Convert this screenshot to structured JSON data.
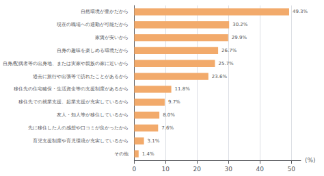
{
  "chart_data": {
    "type": "bar",
    "orientation": "horizontal",
    "categories": [
      "その他",
      "育児支援制度や育児環境が充実しているから",
      "先に移住した人の感想や口コミが良かったから",
      "友人・知人等が移住しているから",
      "移住先での就業支援、起業支援が充実しているから",
      "移住先の住宅確保・生活資金等の支援制度があるから",
      "過去に旅行や出張等で訪れたことがあるから",
      "自身/配偶者等の出身地、または実家や親族の家に近いから",
      "自身の趣味を楽しめる環境だから",
      "家賃が安いから",
      "現在の職場への通勤が可能だから",
      "自然環境が豊かだから"
    ],
    "values": [
      1.4,
      3.1,
      7.6,
      8.0,
      9.7,
      11.8,
      23.6,
      25.7,
      26.7,
      29.9,
      30.2,
      49.3
    ],
    "value_labels": [
      "1.4%",
      "3.1%",
      "7.6%",
      "8.0%",
      "9.7%",
      "11.8%",
      "23.6%",
      "25.7%",
      "26.7%",
      "29.9%",
      "30.2%",
      "49.3%"
    ],
    "data_labels": true,
    "color": "#F2AA6B",
    "xlabel": "(%)",
    "xlim": [
      0,
      53
    ],
    "xticks": [
      0,
      10,
      20,
      30,
      40,
      50
    ],
    "grid": true
  }
}
